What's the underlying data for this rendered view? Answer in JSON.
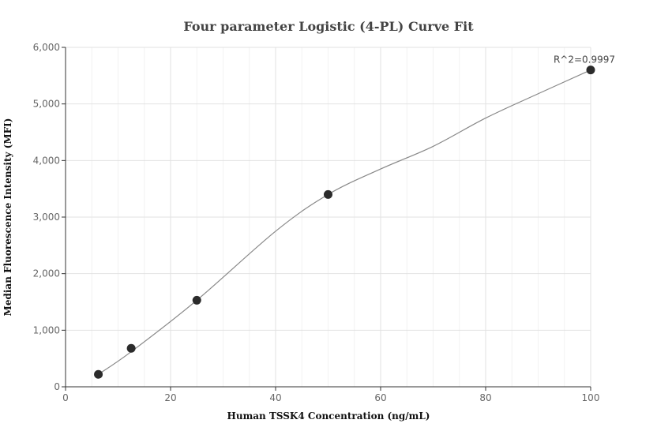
{
  "chart_data": {
    "type": "scatter",
    "title": "Four parameter Logistic (4-PL) Curve Fit",
    "xlabel": "Human TSSK4 Concentration (ng/mL)",
    "ylabel": "Median Fluorescence Intensity (MFI)",
    "xlim": [
      0,
      100
    ],
    "ylim": [
      0,
      6000
    ],
    "x_ticks": [
      0,
      20,
      40,
      60,
      80,
      100
    ],
    "x_tick_labels": [
      "0",
      "20",
      "40",
      "60",
      "80",
      "100"
    ],
    "y_ticks": [
      0,
      1000,
      2000,
      3000,
      4000,
      5000,
      6000
    ],
    "y_tick_labels": [
      "0",
      "1,000",
      "2,000",
      "3,000",
      "4,000",
      "5,000",
      "6,000"
    ],
    "grid": true,
    "series": [
      {
        "points": [
          {
            "x": 6.25,
            "y": 220
          },
          {
            "x": 12.5,
            "y": 680
          },
          {
            "x": 25,
            "y": 1530
          },
          {
            "x": 50,
            "y": 3400
          },
          {
            "x": 100,
            "y": 5600
          }
        ],
        "color": "#2b2b2b"
      }
    ],
    "fit_curve": {
      "color": "#888888",
      "points": [
        {
          "x": 6.25,
          "y": 220
        },
        {
          "x": 12.5,
          "y": 620
        },
        {
          "x": 25,
          "y": 1530
        },
        {
          "x": 40,
          "y": 2750
        },
        {
          "x": 50,
          "y": 3400
        },
        {
          "x": 60,
          "y": 3850
        },
        {
          "x": 70,
          "y": 4250
        },
        {
          "x": 80,
          "y": 4750
        },
        {
          "x": 90,
          "y": 5180
        },
        {
          "x": 100,
          "y": 5600
        }
      ]
    },
    "annotation": "R^2=0.9997"
  }
}
